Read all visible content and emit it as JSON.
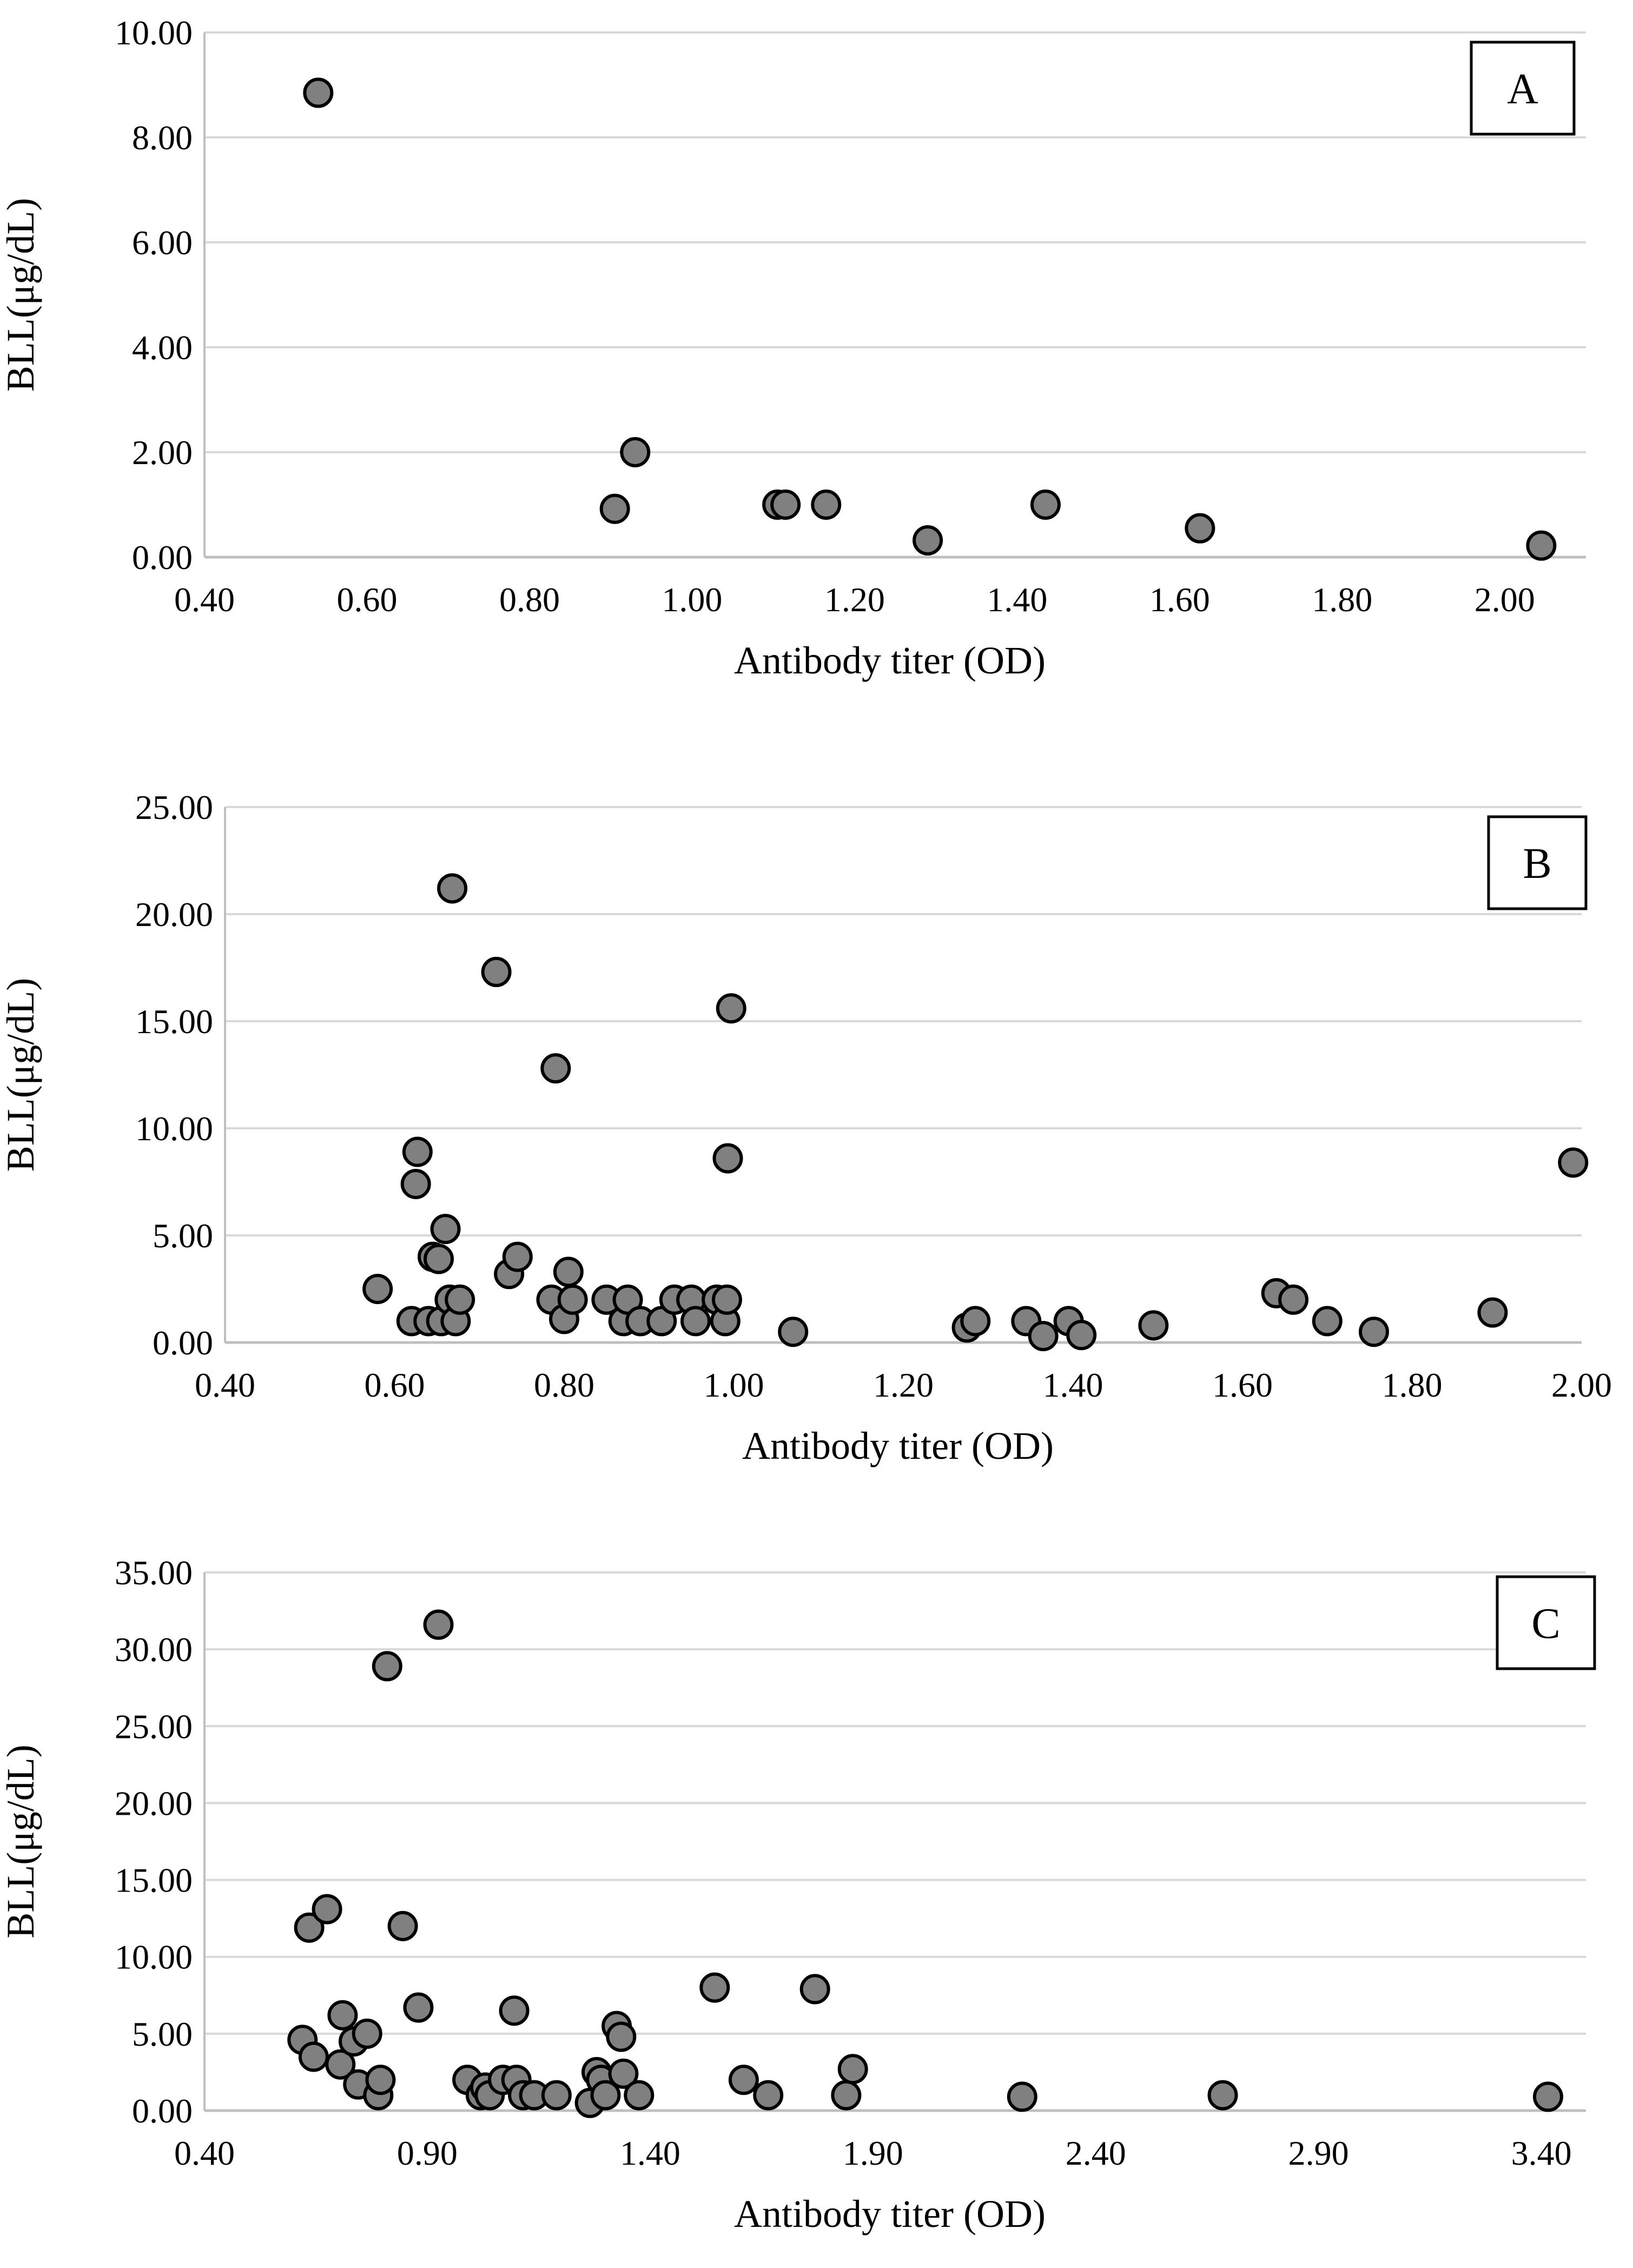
{
  "colors": {
    "grid": "#d9d9d9",
    "marker_fill": "#808080",
    "marker_stroke": "#000000",
    "axis": "#bfbfbf"
  },
  "chart_data": [
    {
      "type": "scatter",
      "panel_label": "A",
      "xlabel": "Antibody titer (OD)",
      "ylabel": "BLL(μg/dL)",
      "xlim": [
        0.4,
        2.1
      ],
      "ylim": [
        0,
        10
      ],
      "x_ticks": [
        0.4,
        0.6,
        0.8,
        1.0,
        1.2,
        1.4,
        1.6,
        1.8,
        2.0
      ],
      "x_tick_labels": [
        "0.40",
        "0.60",
        "0.80",
        "1.00",
        "1.20",
        "1.40",
        "1.60",
        "1.80",
        "2.00"
      ],
      "y_ticks": [
        0,
        2,
        4,
        6,
        8,
        10
      ],
      "y_tick_labels": [
        "0.00",
        "2.00",
        "4.00",
        "6.00",
        "8.00",
        "10.00"
      ],
      "grid": true,
      "legend_position": "top-right",
      "points": [
        [
          0.54,
          8.85
        ],
        [
          0.905,
          0.92
        ],
        [
          0.93,
          2.0
        ],
        [
          1.105,
          1.0
        ],
        [
          1.115,
          1.0
        ],
        [
          1.165,
          1.0
        ],
        [
          1.29,
          0.32
        ],
        [
          1.435,
          1.0
        ],
        [
          1.625,
          0.55
        ],
        [
          2.045,
          0.22
        ]
      ]
    },
    {
      "type": "scatter",
      "panel_label": "B",
      "xlabel": "Antibody titer (OD)",
      "ylabel": "BLL(μg/dL)",
      "xlim": [
        0.4,
        2.0
      ],
      "ylim": [
        0,
        25
      ],
      "x_ticks": [
        0.4,
        0.6,
        0.8,
        1.0,
        1.2,
        1.4,
        1.6,
        1.8,
        2.0
      ],
      "x_tick_labels": [
        "0.40",
        "0.60",
        "0.80",
        "1.00",
        "1.20",
        "1.40",
        "1.60",
        "1.80",
        "2.00"
      ],
      "y_ticks": [
        0,
        5,
        10,
        15,
        20,
        25
      ],
      "y_tick_labels": [
        "0.00",
        "5.00",
        "10.00",
        "15.00",
        "20.00",
        "25.00"
      ],
      "grid": true,
      "legend_position": "top-right",
      "points": [
        [
          0.58,
          2.5
        ],
        [
          0.62,
          1.0
        ],
        [
          0.625,
          7.4
        ],
        [
          0.627,
          8.9
        ],
        [
          0.64,
          1.0
        ],
        [
          0.645,
          4.0
        ],
        [
          0.652,
          3.9
        ],
        [
          0.655,
          1.0
        ],
        [
          0.66,
          5.3
        ],
        [
          0.665,
          2.0
        ],
        [
          0.668,
          21.2
        ],
        [
          0.672,
          1.0
        ],
        [
          0.677,
          2.0
        ],
        [
          0.72,
          17.3
        ],
        [
          0.735,
          3.2
        ],
        [
          0.745,
          4.0
        ],
        [
          0.785,
          2.0
        ],
        [
          0.79,
          12.8
        ],
        [
          0.8,
          1.1
        ],
        [
          0.805,
          3.3
        ],
        [
          0.81,
          2.0
        ],
        [
          0.85,
          2.0
        ],
        [
          0.87,
          1.0
        ],
        [
          0.875,
          2.0
        ],
        [
          0.89,
          1.0
        ],
        [
          0.915,
          1.0
        ],
        [
          0.93,
          2.0
        ],
        [
          0.95,
          2.0
        ],
        [
          0.955,
          1.0
        ],
        [
          0.98,
          2.0
        ],
        [
          0.99,
          1.0
        ],
        [
          0.992,
          2.0
        ],
        [
          0.993,
          8.6
        ],
        [
          0.997,
          15.6
        ],
        [
          1.07,
          0.5
        ],
        [
          1.275,
          0.7
        ],
        [
          1.285,
          1.0
        ],
        [
          1.345,
          1.0
        ],
        [
          1.365,
          0.3
        ],
        [
          1.395,
          1.0
        ],
        [
          1.41,
          0.35
        ],
        [
          1.495,
          0.8
        ],
        [
          1.64,
          2.3
        ],
        [
          1.66,
          2.0
        ],
        [
          1.7,
          1.0
        ],
        [
          1.755,
          0.5
        ],
        [
          1.895,
          1.4
        ],
        [
          1.99,
          8.4
        ]
      ]
    },
    {
      "type": "scatter",
      "panel_label": "C",
      "xlabel": "Antibody titer (OD)",
      "ylabel": "BLL(μg/dL)",
      "xlim": [
        0.4,
        3.5
      ],
      "ylim": [
        0,
        35
      ],
      "x_ticks": [
        0.4,
        0.9,
        1.4,
        1.9,
        2.4,
        2.9,
        3.4
      ],
      "x_tick_labels": [
        "0.40",
        "0.90",
        "1.40",
        "1.90",
        "2.40",
        "2.90",
        "3.40"
      ],
      "y_ticks": [
        0,
        5,
        10,
        15,
        20,
        25,
        30,
        35
      ],
      "y_tick_labels": [
        "0.00",
        "5.00",
        "10.00",
        "15.00",
        "20.00",
        "25.00",
        "30.00",
        "35.00"
      ],
      "grid": true,
      "legend_position": "top-right",
      "points": [
        [
          0.62,
          4.6
        ],
        [
          0.635,
          11.9
        ],
        [
          0.645,
          3.5
        ],
        [
          0.675,
          13.1
        ],
        [
          0.705,
          3.0
        ],
        [
          0.71,
          6.2
        ],
        [
          0.735,
          4.5
        ],
        [
          0.745,
          1.7
        ],
        [
          0.765,
          5.0
        ],
        [
          0.79,
          1.0
        ],
        [
          0.795,
          2.0
        ],
        [
          0.81,
          28.9
        ],
        [
          0.845,
          12.0
        ],
        [
          0.88,
          6.7
        ],
        [
          0.925,
          31.6
        ],
        [
          0.99,
          2.0
        ],
        [
          1.02,
          1.0
        ],
        [
          1.03,
          1.5
        ],
        [
          1.04,
          1.0
        ],
        [
          1.07,
          2.0
        ],
        [
          1.095,
          6.5
        ],
        [
          1.1,
          2.0
        ],
        [
          1.115,
          1.0
        ],
        [
          1.14,
          1.0
        ],
        [
          1.19,
          1.0
        ],
        [
          1.265,
          0.5
        ],
        [
          1.28,
          2.5
        ],
        [
          1.29,
          2.0
        ],
        [
          1.3,
          1.0
        ],
        [
          1.325,
          5.5
        ],
        [
          1.335,
          4.8
        ],
        [
          1.34,
          2.4
        ],
        [
          1.375,
          1.0
        ],
        [
          1.545,
          8.0
        ],
        [
          1.61,
          2.0
        ],
        [
          1.665,
          1.0
        ],
        [
          1.77,
          7.9
        ],
        [
          1.84,
          1.0
        ],
        [
          1.855,
          2.7
        ],
        [
          2.235,
          0.9
        ],
        [
          2.685,
          1.0
        ],
        [
          3.415,
          0.9
        ]
      ]
    }
  ]
}
